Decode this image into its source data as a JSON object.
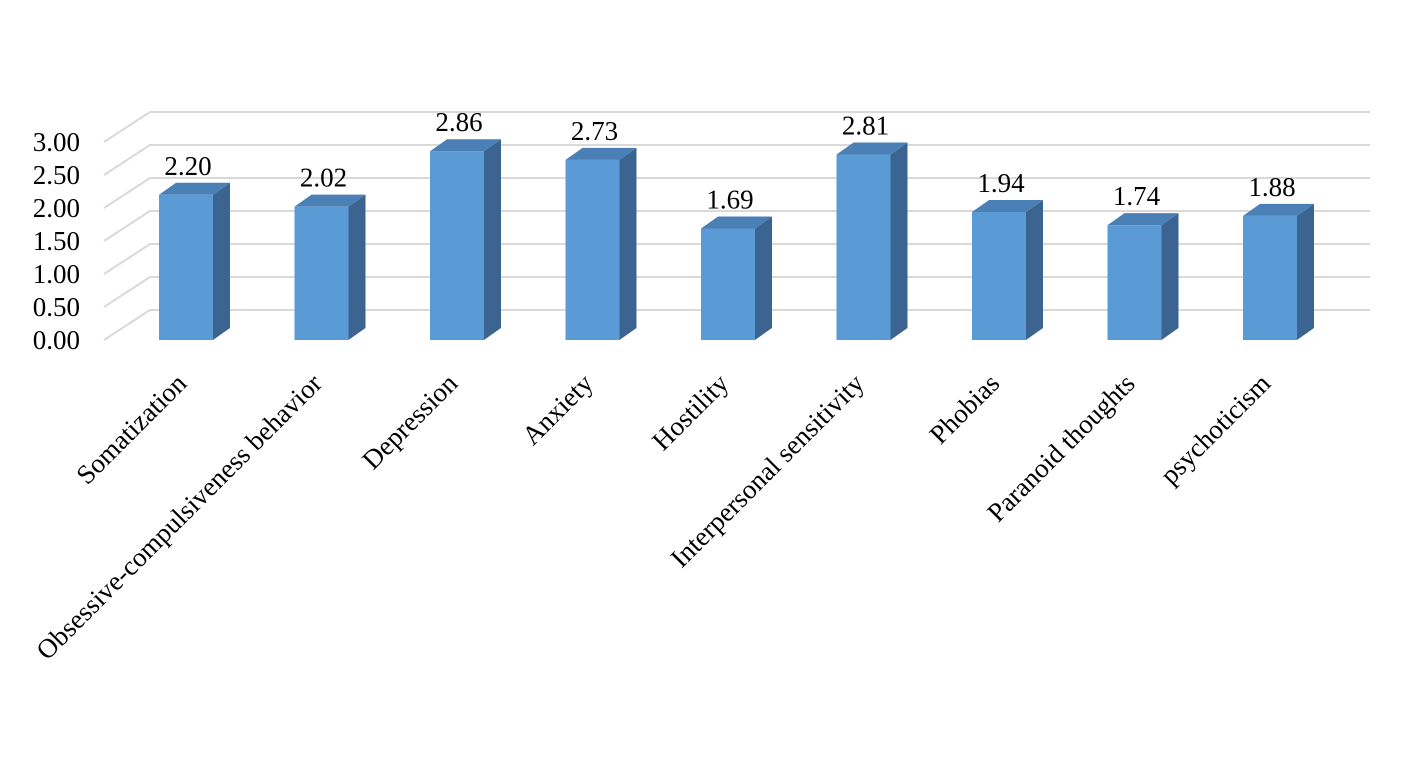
{
  "chart_data": {
    "type": "bar",
    "style": "3d-column",
    "title": "",
    "xlabel": "",
    "ylabel": "",
    "categories": [
      "Somatization",
      "Obsessive-compulsiveness behavior",
      "Depression",
      "Anxiety",
      "Hostility",
      "Interpersonal sensitivity",
      "Phobias",
      "Paranoid thoughts",
      "psychoticism"
    ],
    "values": [
      2.2,
      2.02,
      2.86,
      2.73,
      1.69,
      2.81,
      1.94,
      1.74,
      1.88
    ],
    "value_labels": [
      "2.20",
      "2.02",
      "2.86",
      "2.73",
      "1.69",
      "2.81",
      "1.94",
      "1.74",
      "1.88"
    ],
    "ylim": [
      0,
      3
    ],
    "yticks": [
      "0.00",
      "0.50",
      "1.00",
      "1.50",
      "2.00",
      "2.50",
      "3.00"
    ],
    "grid": true,
    "legend": "none",
    "colors": {
      "bar_front": "#5b9bd5",
      "bar_side": "#3b6590",
      "bar_top": "#4a80b5",
      "grid": "#d9d9d9"
    }
  }
}
